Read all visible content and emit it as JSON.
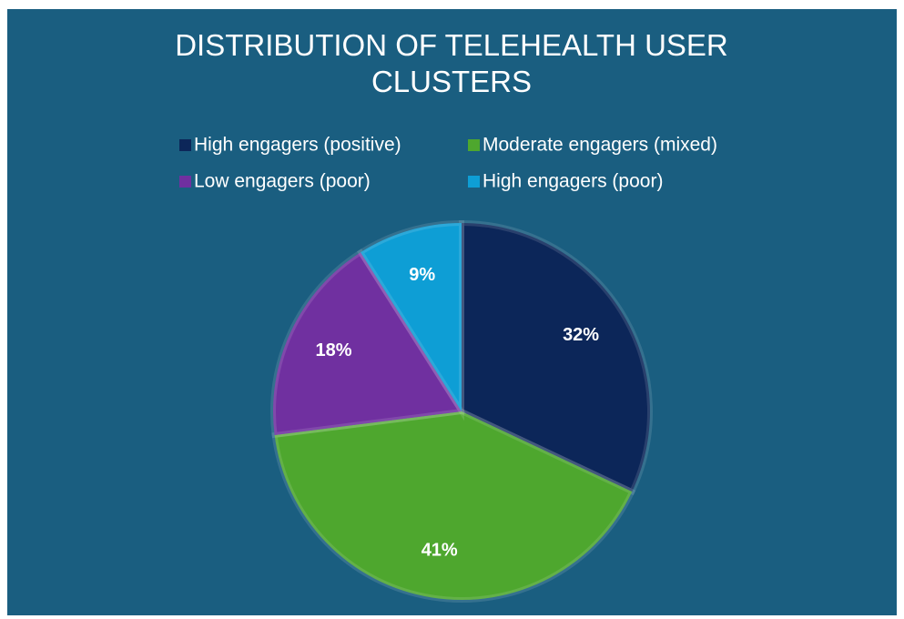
{
  "chart_data": {
    "type": "pie",
    "title": "DISTRIBUTION OF TELEHEALTH USER CLUSTERS",
    "categories": [
      "High engagers (positive)",
      "Moderate engagers (mixed)",
      "Low engagers (poor)",
      "High engagers (poor)"
    ],
    "values": [
      32,
      41,
      18,
      9
    ],
    "value_labels": [
      "32%",
      "41%",
      "18%",
      "9%"
    ],
    "colors": [
      "#0c2659",
      "#4ea72e",
      "#7030a0",
      "#0e9ed5"
    ]
  }
}
